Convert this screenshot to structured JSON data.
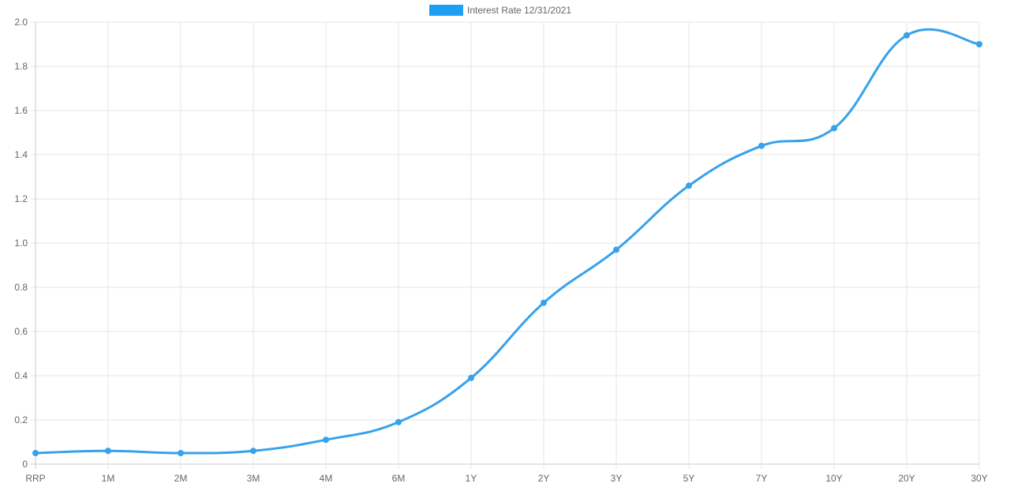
{
  "chart_data": {
    "type": "line",
    "categories": [
      "RRP",
      "1M",
      "2M",
      "3M",
      "4M",
      "6M",
      "1Y",
      "2Y",
      "3Y",
      "5Y",
      "7Y",
      "10Y",
      "20Y",
      "30Y"
    ],
    "series": [
      {
        "name": "Interest Rate 12/31/2021",
        "values": [
          0.05,
          0.06,
          0.05,
          0.06,
          0.11,
          0.19,
          0.39,
          0.73,
          0.97,
          1.26,
          1.44,
          1.52,
          1.94,
          1.9
        ],
        "color": "#36a2eb"
      }
    ],
    "yticks": [
      "0",
      "0.2",
      "0.4",
      "0.6",
      "0.8",
      "1.0",
      "1.2",
      "1.4",
      "1.6",
      "1.8",
      "2.0"
    ],
    "ylim": [
      0,
      2.0
    ],
    "grid": true,
    "legend_position": "top-center",
    "smooth": true
  }
}
